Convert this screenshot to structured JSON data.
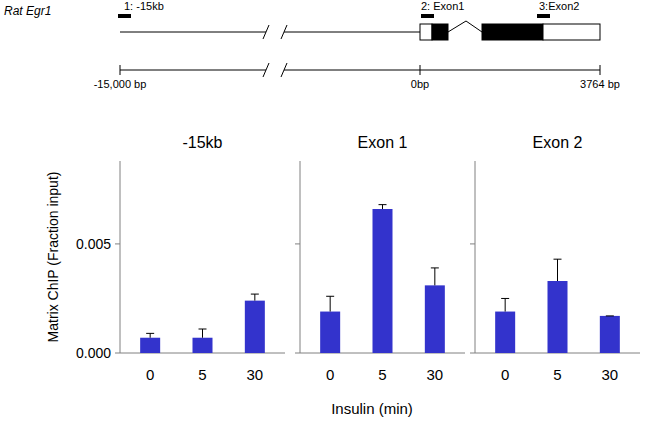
{
  "gene_diagram": {
    "gene": "Rat Egr1",
    "probes": [
      "1: -15kb",
      "2: Exon1",
      "3:Exon2"
    ],
    "scale_labels": [
      "-15,000 bp",
      "0bp",
      "3764 bp"
    ]
  },
  "figure": {
    "y_label": "Matrix ChIP (Fraction input)",
    "x_label": "Insulin (min)"
  },
  "chart_data": [
    {
      "type": "bar",
      "title": "-15kb",
      "categories": [
        "0",
        "5",
        "30"
      ],
      "values": [
        0.0007,
        0.0007,
        0.0024
      ],
      "errors": [
        0.0002,
        0.0004,
        0.0003
      ],
      "color": "#3333cc",
      "ylim": [
        0,
        0.0088
      ],
      "yticks": [
        {
          "value": 0,
          "label": "0.000"
        },
        {
          "value": 0.005,
          "label": "0.005"
        }
      ]
    },
    {
      "type": "bar",
      "title": "Exon 1",
      "categories": [
        "0",
        "5",
        "30"
      ],
      "values": [
        0.0019,
        0.0066,
        0.0031
      ],
      "errors": [
        0.0007,
        0.0002,
        0.0008
      ],
      "color": "#3333cc",
      "ylim": [
        0,
        0.0088
      ],
      "yticks": [
        0,
        0.005
      ],
      "tick_labels": "x"
    },
    {
      "type": "bar",
      "title": "Exon 2",
      "categories": [
        "0",
        "5",
        "30"
      ],
      "values": [
        0.0019,
        0.0033,
        0.0017
      ],
      "errors": [
        0.0006,
        0.001,
        0.0
      ],
      "color": "#3333cc",
      "ylim": [
        0,
        0.0088
      ],
      "yticks": [
        0,
        0.005
      ],
      "tick_labels": "x"
    }
  ]
}
